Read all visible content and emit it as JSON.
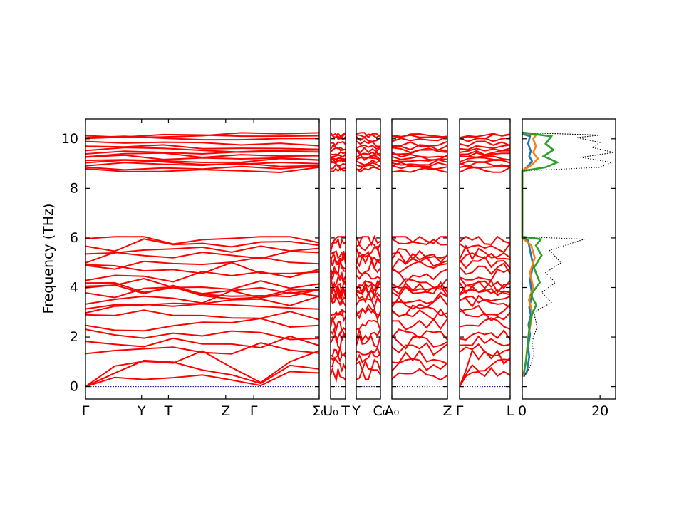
{
  "chart_data": {
    "type": "line",
    "ylabel": "Frequency (THz)",
    "ylim": [
      -0.5,
      10.8
    ],
    "yticks": [
      0,
      2,
      4,
      6,
      8,
      10
    ],
    "band_color": "#ff0000",
    "zero_line_color": "#00008b",
    "band_segments": [
      {
        "ticks": [
          {
            "label": "Γ",
            "pos": 0.0
          },
          {
            "label": "Y",
            "pos": 0.24
          },
          {
            "label": "T",
            "pos": 0.355
          },
          {
            "label": "Z",
            "pos": 0.6
          },
          {
            "label": "Γ",
            "pos": 0.72
          },
          {
            "label": "Σ₀",
            "pos": 1.0
          }
        ]
      },
      {
        "ticks": [
          {
            "label": "U₀",
            "pos": 0.0
          },
          {
            "label": "T",
            "pos": 1.0
          }
        ]
      },
      {
        "ticks": [
          {
            "label": "Y",
            "pos": 0.0
          },
          {
            "label": "C₀",
            "pos": 1.0
          }
        ]
      },
      {
        "ticks": [
          {
            "label": "A₀",
            "pos": 0.0
          },
          {
            "label": "Z",
            "pos": 1.0
          }
        ]
      },
      {
        "ticks": [
          {
            "label": "Γ",
            "pos": 0.0
          },
          {
            "label": "L",
            "pos": 1.0
          }
        ]
      }
    ],
    "low_branch_freqs": [
      0.5,
      0.9,
      1.2,
      1.5,
      1.8,
      2.1,
      2.5,
      2.9,
      3.1,
      3.4,
      3.6,
      3.8,
      3.9,
      4.0,
      4.2,
      4.5,
      4.8,
      5.0,
      5.2,
      5.4,
      5.7,
      6.0
    ],
    "high_branch_freqs": [
      8.75,
      8.85,
      8.95,
      9.05,
      9.15,
      9.25,
      9.35,
      9.45,
      9.55,
      9.65,
      9.8,
      10.0,
      10.1,
      10.15
    ],
    "dos": {
      "xlim": [
        0,
        24
      ],
      "xticks": [
        0,
        20
      ],
      "series": [
        {
          "color": "#1f77b4",
          "points": [
            [
              0.3,
              0.4
            ],
            [
              1.2,
              0.6
            ],
            [
              1.8,
              1.2
            ],
            [
              1.5,
              1.6
            ],
            [
              2.0,
              2.1
            ],
            [
              1.6,
              2.5
            ],
            [
              2.2,
              2.9
            ],
            [
              1.8,
              3.2
            ],
            [
              2.5,
              3.7
            ],
            [
              2.0,
              4.3
            ],
            [
              2.8,
              4.9
            ],
            [
              2.0,
              5.5
            ],
            [
              1.5,
              5.9
            ],
            [
              0,
              6.0
            ],
            [
              0,
              8.7
            ],
            [
              1.5,
              8.9
            ],
            [
              2.5,
              9.1
            ],
            [
              1.8,
              9.3
            ],
            [
              2.2,
              9.5
            ],
            [
              1.5,
              9.8
            ],
            [
              2.0,
              10.1
            ],
            [
              0,
              10.2
            ]
          ]
        },
        {
          "color": "#ff7f0e",
          "points": [
            [
              0.2,
              0.4
            ],
            [
              0.9,
              1.0
            ],
            [
              1.6,
              2.0
            ],
            [
              2.6,
              3.0
            ],
            [
              1.7,
              3.5
            ],
            [
              2.8,
              4.0
            ],
            [
              2.0,
              4.6
            ],
            [
              3.2,
              5.2
            ],
            [
              2.3,
              5.7
            ],
            [
              0,
              6.0
            ],
            [
              0,
              8.7
            ],
            [
              2.5,
              8.95
            ],
            [
              4.0,
              9.2
            ],
            [
              2.8,
              9.45
            ],
            [
              3.5,
              9.7
            ],
            [
              2.8,
              10.0
            ],
            [
              3.5,
              10.15
            ],
            [
              0,
              10.25
            ]
          ]
        },
        {
          "color": "#2ca02c",
          "points": [
            [
              0.4,
              0.5
            ],
            [
              1.0,
              1.1
            ],
            [
              1.7,
              2.2
            ],
            [
              2.2,
              2.8
            ],
            [
              3.6,
              3.3
            ],
            [
              2.2,
              3.7
            ],
            [
              4.5,
              4.2
            ],
            [
              3.0,
              4.8
            ],
            [
              5.0,
              5.3
            ],
            [
              3.5,
              5.7
            ],
            [
              4.8,
              5.95
            ],
            [
              0,
              6.05
            ],
            [
              0,
              8.7
            ],
            [
              6.0,
              8.85
            ],
            [
              9.0,
              9.05
            ],
            [
              5.5,
              9.3
            ],
            [
              8.0,
              9.55
            ],
            [
              6.0,
              9.8
            ],
            [
              7.5,
              10.1
            ],
            [
              0,
              10.25
            ]
          ]
        },
        {
          "color": "#000000",
          "dotted": true,
          "points": [
            [
              0.5,
              0.4
            ],
            [
              2.0,
              0.8
            ],
            [
              3.0,
              1.3
            ],
            [
              2.5,
              1.8
            ],
            [
              3.8,
              2.4
            ],
            [
              3.0,
              3.0
            ],
            [
              7.5,
              3.4
            ],
            [
              5.0,
              3.8
            ],
            [
              8.5,
              4.2
            ],
            [
              6.0,
              4.6
            ],
            [
              10.0,
              5.0
            ],
            [
              7.0,
              5.5
            ],
            [
              16.0,
              5.95
            ],
            [
              0,
              6.05
            ],
            [
              0,
              8.7
            ],
            [
              20.0,
              8.85
            ],
            [
              23.0,
              9.05
            ],
            [
              15.0,
              9.25
            ],
            [
              23.5,
              9.45
            ],
            [
              18.0,
              9.65
            ],
            [
              20.0,
              9.85
            ],
            [
              14.0,
              10.05
            ],
            [
              20.0,
              10.15
            ],
            [
              0,
              10.25
            ]
          ]
        }
      ]
    }
  }
}
